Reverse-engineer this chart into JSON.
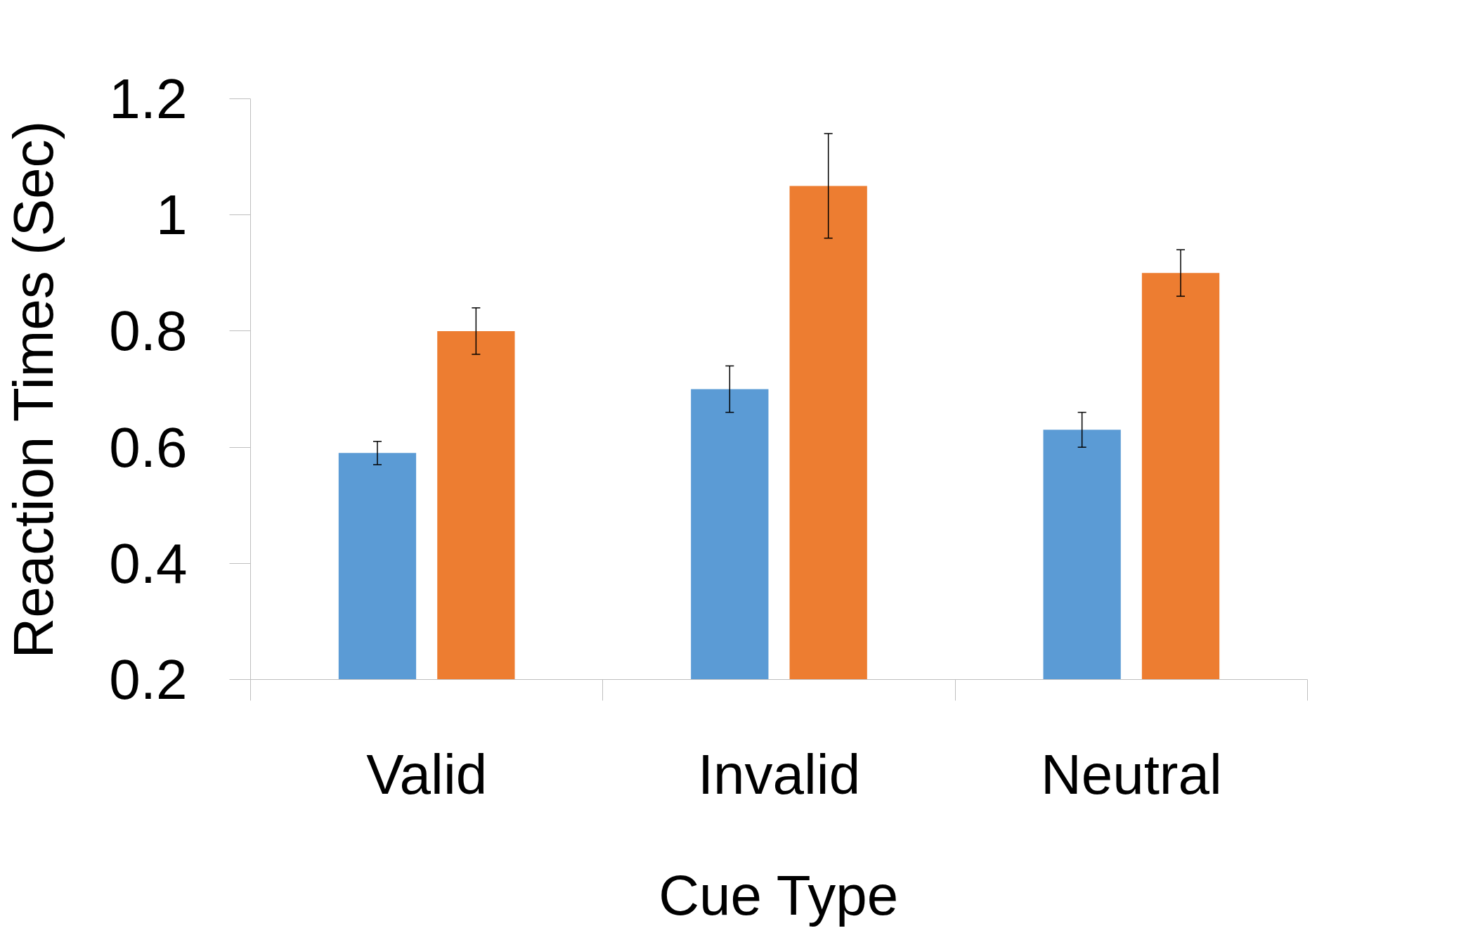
{
  "chart_data": {
    "type": "bar",
    "xlabel": "Cue Type",
    "ylabel": "Reaction Times (Sec)",
    "categories": [
      "Valid",
      "Invalid",
      "Neutral"
    ],
    "series": [
      {
        "color": "#5b9bd5",
        "values": [
          0.59,
          0.7,
          0.63
        ],
        "errors": [
          0.02,
          0.04,
          0.03
        ]
      },
      {
        "color": "#ed7d31",
        "values": [
          0.8,
          1.05,
          0.9
        ],
        "errors": [
          0.04,
          0.09,
          0.04
        ]
      }
    ],
    "ylim": [
      0.2,
      1.2
    ],
    "yticks": [
      0.2,
      0.4,
      0.6,
      0.8,
      1,
      1.2
    ],
    "grid": false
  }
}
